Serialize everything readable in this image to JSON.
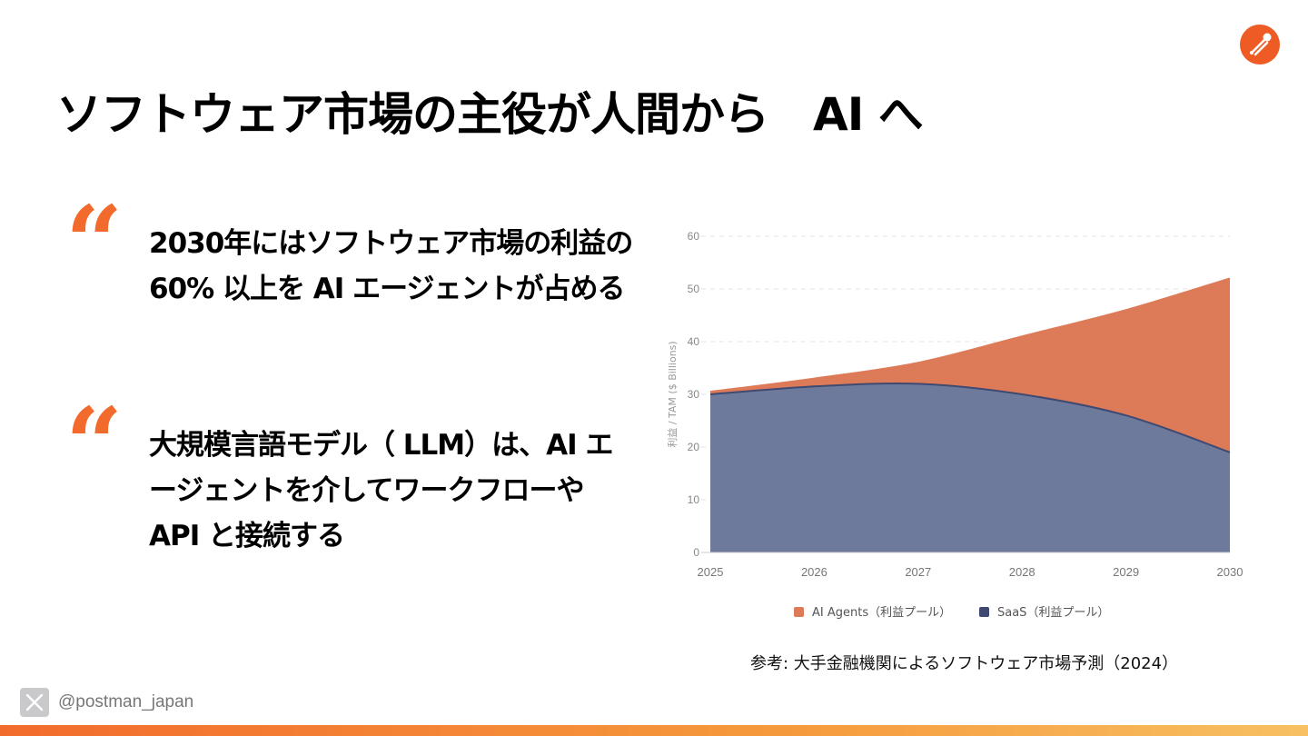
{
  "slide": {
    "title": "ソフトウェア市場の主役が人間から　AI へ",
    "quote_mark": "“",
    "quotes": [
      {
        "text": "2030年にはソフトウェア市場の利益の 60% 以上を AI エージェントが占める"
      },
      {
        "text": "大規模言語モデル（ LLM）は、AI エージェントを介してワークフローや API と接続する"
      }
    ],
    "source": "参考: 大手金融機関によるソフトウェア市場予測（2024）",
    "social": {
      "icon": "x-logo-icon",
      "handle": "@postman_japan"
    },
    "logo": {
      "icon": "postman-logo-icon",
      "color": "#ef5b25"
    },
    "accent_color": "#f26b2c"
  },
  "chart_data": {
    "type": "area",
    "stacked": false,
    "x": [
      2025,
      2026,
      2027,
      2028,
      2029,
      2030
    ],
    "series": [
      {
        "name": "AI Agents（利益プール）",
        "color": "#dd7a57",
        "values": [
          30.5,
          33,
          36,
          41,
          46,
          52
        ]
      },
      {
        "name": "SaaS（利益プール）",
        "color": "#6e7a9c",
        "line_color": "#3e4a72",
        "legend_color": "#3e4a72",
        "values": [
          30,
          31.5,
          32,
          30,
          26,
          19
        ]
      }
    ],
    "ylabel": "利益 / TAM ($ Billions)",
    "xlabel": "",
    "ylim": [
      0,
      60
    ],
    "yticks": [
      0,
      10,
      20,
      30,
      40,
      50,
      60
    ],
    "grid": true,
    "legend_position": "bottom"
  }
}
